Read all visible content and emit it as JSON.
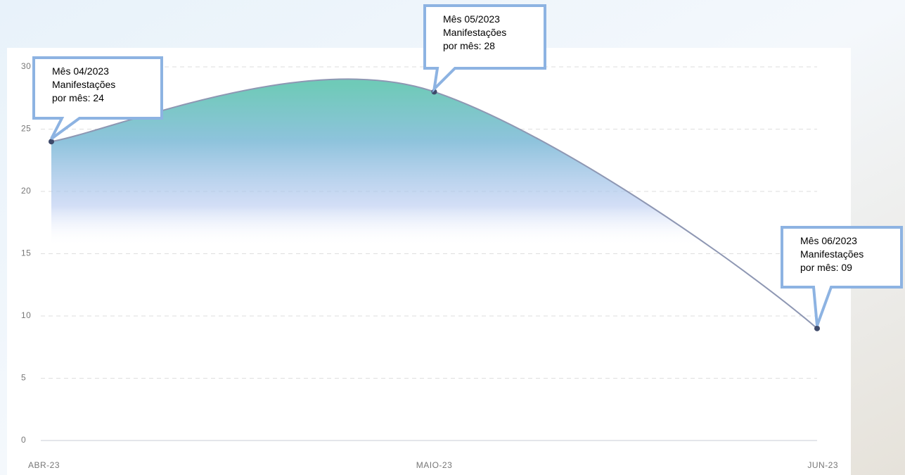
{
  "chart_data": {
    "type": "area",
    "categories": [
      "ABR-23",
      "MAIO-23",
      "JUN-23"
    ],
    "series": [
      {
        "values": [
          24,
          28,
          9
        ],
        "color": "#8e97b3",
        "marker_color": "#3e4a6a"
      }
    ],
    "ylim": [
      0,
      30
    ],
    "yticks": [
      0,
      5,
      10,
      15,
      20,
      25,
      30
    ],
    "grid": true,
    "annotations": [
      {
        "lines": [
          "Mês 04/2023",
          "Manifestações",
          "por mês: 24"
        ]
      },
      {
        "lines": [
          "Mês 05/2023",
          "Manifestações",
          "por mês: 28"
        ]
      },
      {
        "lines": [
          "Mês 06/2023",
          "Manifestações",
          "por mês: 09"
        ]
      }
    ]
  }
}
